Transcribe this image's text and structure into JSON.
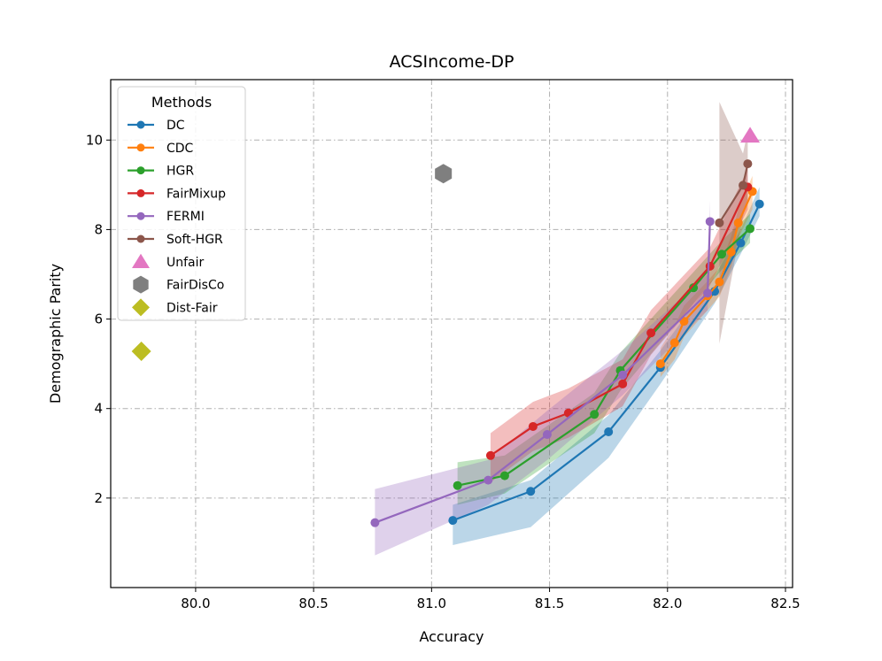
{
  "chart_data": {
    "type": "line",
    "title": "ACSIncome-DP",
    "xlabel": "Accuracy",
    "ylabel": "Demographic Parity",
    "xlim": [
      79.64,
      82.53
    ],
    "ylim": [
      0.0,
      11.35
    ],
    "xticks": [
      "80.0",
      "80.5",
      "81.0",
      "81.5",
      "82.0",
      "82.5"
    ],
    "yticks": [
      "2",
      "4",
      "6",
      "8",
      "10"
    ],
    "grid": true,
    "legend": {
      "title": "Methods",
      "position": "upper-left"
    },
    "series": [
      {
        "name": "DC",
        "color": "#1f77b4",
        "marker": "circle",
        "x": [
          81.09,
          81.42,
          81.75,
          81.97,
          82.2,
          82.31,
          82.39
        ],
        "y": [
          1.5,
          2.15,
          3.48,
          4.92,
          6.62,
          7.7,
          8.57
        ],
        "band_low": [
          0.95,
          1.35,
          2.9,
          4.55,
          6.35,
          7.45,
          8.3
        ],
        "band_high": [
          1.85,
          2.4,
          3.85,
          5.3,
          6.95,
          8.0,
          8.95
        ]
      },
      {
        "name": "CDC",
        "color": "#ff7f0e",
        "marker": "circle",
        "x": [
          81.97,
          82.03,
          82.07,
          82.17,
          82.22,
          82.27,
          82.3,
          82.36
        ],
        "y": [
          5.0,
          5.47,
          5.95,
          6.52,
          6.83,
          7.5,
          8.15,
          8.85
        ],
        "band_low": [
          4.7,
          5.1,
          5.6,
          6.2,
          6.5,
          7.15,
          7.8,
          8.45
        ],
        "band_high": [
          5.35,
          5.85,
          6.3,
          6.85,
          7.15,
          7.85,
          8.45,
          9.2
        ]
      },
      {
        "name": "HGR",
        "color": "#2ca02c",
        "marker": "circle",
        "x": [
          81.11,
          81.31,
          81.69,
          81.8,
          82.11,
          82.23,
          82.35
        ],
        "y": [
          2.28,
          2.5,
          3.87,
          4.85,
          6.7,
          7.45,
          8.02
        ],
        "band_low": [
          1.85,
          2.1,
          3.45,
          4.4,
          6.35,
          7.1,
          7.7
        ],
        "band_high": [
          2.8,
          2.95,
          4.35,
          5.25,
          7.05,
          7.75,
          8.35
        ]
      },
      {
        "name": "FairMixup",
        "color": "#d62728",
        "marker": "circle",
        "x": [
          81.25,
          81.43,
          81.58,
          81.81,
          81.93,
          82.18,
          82.34
        ],
        "y": [
          2.95,
          3.6,
          3.9,
          4.55,
          5.69,
          7.18,
          8.95
        ],
        "band_low": [
          2.35,
          3.05,
          3.35,
          4.05,
          5.2,
          6.75,
          8.45
        ],
        "band_high": [
          3.45,
          4.15,
          4.45,
          5.1,
          6.2,
          7.6,
          9.35
        ]
      },
      {
        "name": "FERMI",
        "color": "#9467bd",
        "marker": "circle",
        "x": [
          80.76,
          81.24,
          81.49,
          81.81,
          82.17,
          82.18
        ],
        "y": [
          1.45,
          2.4,
          3.42,
          4.75,
          6.58,
          8.18
        ],
        "band_low": [
          0.72,
          1.85,
          2.85,
          4.3,
          6.2,
          7.6
        ],
        "band_high": [
          2.2,
          2.85,
          3.95,
          5.3,
          7.0,
          8.65
        ]
      },
      {
        "name": "Soft-HGR",
        "color": "#8c564b",
        "marker": "circle",
        "x": [
          82.22,
          82.32,
          82.34
        ],
        "y": [
          8.15,
          8.99,
          9.47
        ],
        "band_low": [
          5.45,
          8.3,
          8.7
        ],
        "band_high": [
          10.85,
          9.7,
          10.2
        ]
      }
    ],
    "points": [
      {
        "name": "Unfair",
        "color": "#e377c2",
        "marker": "triangle",
        "x": 82.35,
        "y": 10.1
      },
      {
        "name": "FairDisCo",
        "color": "#7f7f7f",
        "marker": "hexagon",
        "x": 81.05,
        "y": 9.25
      },
      {
        "name": "Dist-Fair",
        "color": "#bcbd22",
        "marker": "diamond",
        "x": 79.77,
        "y": 5.28
      }
    ]
  }
}
